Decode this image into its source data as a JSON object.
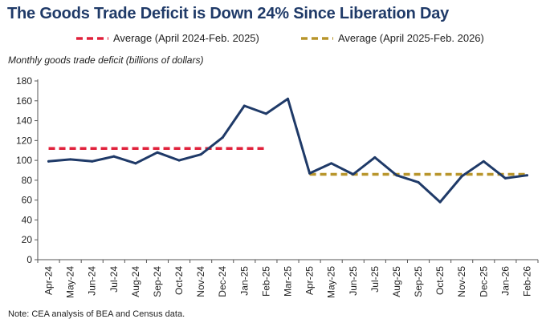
{
  "chart_data": {
    "type": "line",
    "title": "The Goods Trade Deficit is Down 24% Since Liberation Day",
    "ylabel": "Monthly goods trade deficit (billions of dollars)",
    "xlabel": "",
    "ylim": [
      0,
      180
    ],
    "yticks": [
      0,
      20,
      40,
      60,
      80,
      100,
      120,
      140,
      160,
      180
    ],
    "grid": false,
    "legend_position": "top",
    "categories": [
      "Apr-24",
      "May-24",
      "Jun-24",
      "Jul-24",
      "Aug-24",
      "Sep-24",
      "Oct-24",
      "Nov-24",
      "Dec-24",
      "Jan-25",
      "Feb-25",
      "Mar-25",
      "Apr-25",
      "May-25",
      "Jun-25",
      "Jul-25",
      "Aug-25",
      "Sep-25",
      "Oct-25",
      "Nov-25",
      "Dec-25",
      "Jan-26",
      "Feb-26"
    ],
    "series": [
      {
        "name": "Monthly goods trade deficit",
        "color": "#1f3a68",
        "values": [
          99,
          101,
          99,
          104,
          97,
          108,
          100,
          106,
          123,
          155,
          147,
          162,
          87,
          97,
          86,
          103,
          85,
          78,
          58,
          84,
          99,
          82,
          85
        ]
      }
    ],
    "averages": [
      {
        "label": "Average (April 2024-Feb. 2025)",
        "value": 112,
        "start": "Apr-24",
        "end": "Feb-25",
        "color": "#e0213b",
        "style": "dashed"
      },
      {
        "label": "Average (April 2025-Feb. 2026)",
        "value": 86,
        "start": "Apr-25",
        "end": "Feb-26",
        "color": "#b8952b",
        "style": "dashed"
      }
    ]
  },
  "note": "Note: CEA analysis of BEA and Census data."
}
